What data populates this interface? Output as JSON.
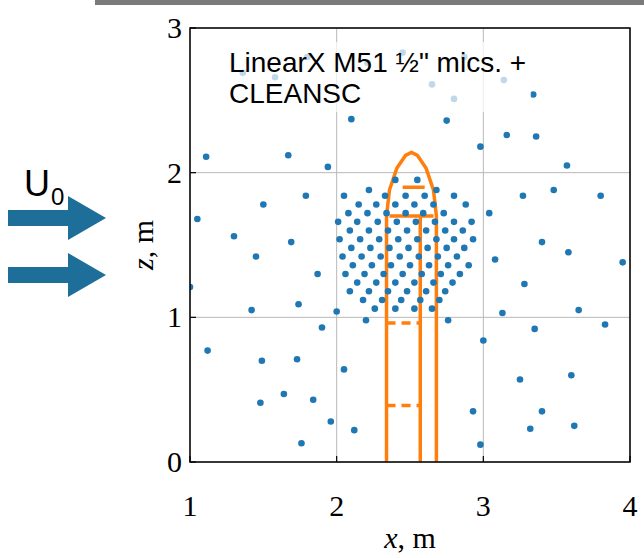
{
  "chart_data": {
    "type": "scatter",
    "x_label": "x, m",
    "y_label": "z, m",
    "annotations": [
      "LinearX M51 ½\" mics. +",
      "CLEANSC"
    ],
    "flow_label": {
      "text": "U",
      "subscript": "0"
    },
    "xlim": [
      1,
      4
    ],
    "ylim": [
      0,
      3
    ],
    "xticks": [
      1,
      2,
      3,
      4
    ],
    "yticks": [
      0,
      1,
      2,
      3
    ],
    "grid": true,
    "series": [
      {
        "type": "scatter",
        "color": "#1f77b4",
        "marker": "circle",
        "x": [
          1.11,
          1.05,
          1.0,
          1.12,
          1.3,
          1.45,
          1.5,
          1.69,
          1.42,
          1.49,
          1.48,
          1.64,
          1.73,
          1.74,
          1.87,
          1.79,
          1.67,
          1.36,
          1.58,
          1.8,
          1.94,
          1.9,
          1.84,
          1.76,
          1.96,
          2.05,
          2.0,
          2.12,
          2.21,
          2.45,
          2.65,
          2.8,
          2.87,
          3.14,
          3.34,
          3.16,
          3.36,
          3.57,
          3.48,
          2.98,
          2.75,
          2.1,
          3.04,
          3.27,
          3.8,
          3.95,
          3.58,
          3.4,
          3.08,
          3.28,
          3.13,
          3.35,
          3.65,
          3.83,
          3.6,
          3.25,
          3.0,
          3.4,
          3.32,
          2.93,
          2.98,
          3.62,
          2.4,
          2.55,
          2.22,
          2.68,
          2.05,
          2.33,
          2.47,
          2.6,
          2.8,
          2.15,
          2.27,
          2.4,
          2.53,
          2.66,
          2.88,
          2.08,
          2.21,
          2.34,
          2.47,
          2.59,
          2.73,
          2.01,
          2.14,
          2.28,
          2.41,
          2.54,
          2.67,
          2.8,
          2.92,
          2.09,
          2.22,
          2.35,
          2.48,
          2.61,
          2.74,
          2.86,
          2.02,
          2.16,
          2.29,
          2.42,
          2.55,
          2.68,
          2.8,
          2.93,
          2.1,
          2.23,
          2.36,
          2.49,
          2.62,
          2.75,
          2.87,
          2.04,
          2.17,
          2.3,
          2.43,
          2.56,
          2.69,
          2.82,
          2.11,
          2.24,
          2.37,
          2.5,
          2.63,
          2.76,
          2.9,
          2.06,
          2.19,
          2.32,
          2.45,
          2.58,
          2.71,
          2.84,
          2.14,
          2.27,
          2.4,
          2.53,
          2.66,
          2.79,
          2.09,
          2.22,
          2.35,
          2.48,
          2.61,
          2.74,
          2.18,
          2.31,
          2.44,
          2.57,
          2.7,
          2.26,
          2.4,
          2.53,
          2.65,
          2.2,
          2.76
        ],
        "values": [
          2.11,
          1.68,
          1.21,
          0.77,
          1.56,
          1.42,
          1.78,
          1.52,
          1.05,
          0.7,
          0.41,
          0.47,
          0.71,
          1.09,
          1.3,
          1.84,
          2.12,
          2.69,
          2.66,
          2.8,
          2.04,
          0.93,
          0.43,
          0.13,
          0.28,
          0.64,
          1.04,
          0.22,
          2.76,
          2.83,
          2.61,
          2.51,
          2.8,
          2.64,
          2.54,
          2.26,
          2.25,
          2.05,
          1.88,
          2.18,
          2.36,
          2.37,
          1.72,
          1.84,
          1.84,
          1.38,
          1.45,
          1.52,
          1.4,
          1.23,
          1.03,
          0.92,
          1.05,
          0.95,
          0.6,
          0.57,
          0.84,
          0.35,
          0.23,
          0.35,
          0.12,
          0.25,
          1.95,
          1.95,
          1.88,
          1.88,
          1.84,
          1.84,
          1.84,
          1.84,
          1.84,
          1.78,
          1.78,
          1.78,
          1.78,
          1.78,
          1.78,
          1.72,
          1.72,
          1.72,
          1.72,
          1.72,
          1.72,
          1.66,
          1.66,
          1.66,
          1.66,
          1.66,
          1.66,
          1.66,
          1.66,
          1.6,
          1.6,
          1.6,
          1.6,
          1.6,
          1.6,
          1.6,
          1.54,
          1.54,
          1.54,
          1.54,
          1.54,
          1.54,
          1.54,
          1.54,
          1.48,
          1.48,
          1.48,
          1.48,
          1.48,
          1.48,
          1.48,
          1.42,
          1.42,
          1.42,
          1.42,
          1.42,
          1.42,
          1.42,
          1.36,
          1.36,
          1.36,
          1.36,
          1.36,
          1.36,
          1.36,
          1.3,
          1.3,
          1.3,
          1.3,
          1.3,
          1.3,
          1.3,
          1.24,
          1.24,
          1.24,
          1.24,
          1.24,
          1.24,
          1.18,
          1.18,
          1.18,
          1.18,
          1.18,
          1.18,
          1.12,
          1.12,
          1.12,
          1.12,
          1.12,
          1.06,
          1.06,
          1.06,
          1.06,
          0.98,
          0.98
        ]
      },
      {
        "type": "line",
        "color": "#ff7f0e",
        "line_style": "solid",
        "x": [
          2.34,
          2.34,
          2.36,
          2.41,
          2.47,
          2.51,
          2.55,
          2.61,
          2.66,
          2.68,
          2.68,
          null,
          2.57,
          2.57,
          null,
          2.36,
          2.66,
          null,
          2.45,
          2.6
        ],
        "values": [
          0,
          1.7,
          1.88,
          2.03,
          2.12,
          2.14,
          2.12,
          2.03,
          1.88,
          1.7,
          0,
          null,
          0,
          1.7,
          null,
          1.7,
          1.7,
          null,
          1.9,
          1.9
        ]
      },
      {
        "type": "line",
        "color": "#ff7f0e",
        "line_style": "dashed",
        "x": [
          2.34,
          2.57,
          null,
          2.34,
          2.57
        ],
        "values": [
          0.96,
          0.96,
          null,
          0.39,
          0.39
        ]
      }
    ]
  }
}
